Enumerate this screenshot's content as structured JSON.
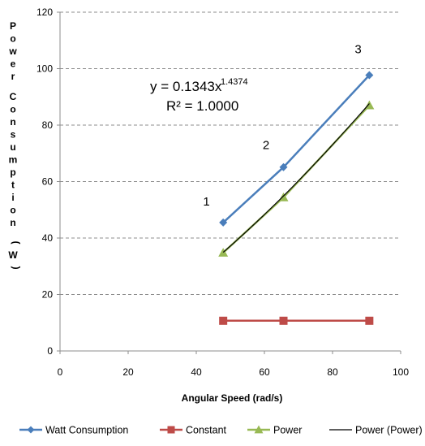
{
  "chart_data": {
    "type": "line",
    "xlabel": "Angular Speed (rad/s)",
    "ylabel": "Power Consumption (W)",
    "xlim": [
      0,
      100
    ],
    "ylim": [
      0,
      120
    ],
    "xticks": [
      "0",
      "20",
      "40",
      "60",
      "80",
      "100"
    ],
    "yticks": [
      "0",
      "20",
      "40",
      "60",
      "80",
      "100",
      "120"
    ],
    "grid": "horizontal dashed",
    "legend_position": "bottom",
    "series": [
      {
        "name": "Watt Consumption",
        "color": "#4a7ebb",
        "marker": "diamond",
        "x": [
          47.9,
          65.6,
          90.8
        ],
        "y": [
          45.5,
          65.1,
          97.7
        ]
      },
      {
        "name": "Constant",
        "color": "#be4b48",
        "marker": "square",
        "x": [
          47.9,
          65.6,
          90.8
        ],
        "y": [
          10.7,
          10.7,
          10.7
        ]
      },
      {
        "name": "Power",
        "color": "#98b954",
        "marker": "triangle",
        "x": [
          47.9,
          65.6,
          90.8
        ],
        "y": [
          34.8,
          54.4,
          87.0
        ]
      },
      {
        "name": "Power (Power)",
        "color": "#000000",
        "marker": "none",
        "trendline": true,
        "equation": {
          "coef": 0.1343,
          "exp": 1.4374
        },
        "x_range": [
          47.9,
          90.8
        ]
      }
    ],
    "annotations": [
      {
        "text": "1",
        "x": 43,
        "y": 51.5
      },
      {
        "text": "2",
        "x": 60.5,
        "y": 71.5
      },
      {
        "text": "3",
        "x": 87.5,
        "y": 105.5
      }
    ],
    "equation_text": {
      "main": "y = 0.1343x",
      "exponent": "1.4374"
    },
    "r_squared_text": "R² = 1.0000"
  }
}
